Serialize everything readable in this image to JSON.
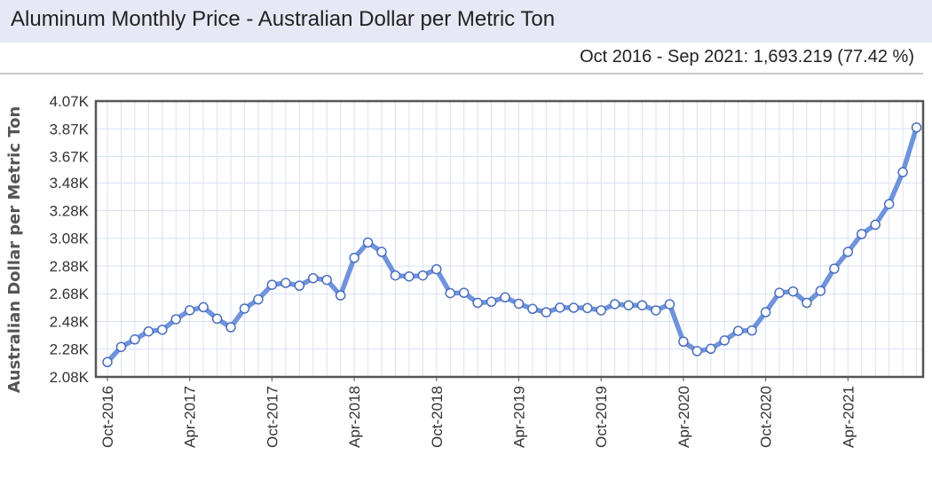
{
  "chart_data": {
    "type": "line",
    "title": "Aluminum Monthly Price - Australian Dollar per Metric Ton",
    "subtitle": "Oct 2016 - Sep 2021: 1,693.219 (77.42 %)",
    "xlabel": "",
    "ylabel": "Australian Dollar per Metric Ton",
    "ylim": [
      2080,
      4070
    ],
    "y_ticks": [
      2080,
      2280,
      2480,
      2680,
      2880,
      3080,
      3280,
      3480,
      3670,
      3870,
      4070
    ],
    "y_tick_labels": [
      "2.08K",
      "2.28K",
      "2.48K",
      "2.68K",
      "2.88K",
      "3.08K",
      "3.28K",
      "3.48K",
      "3.67K",
      "3.87K",
      "4.07K"
    ],
    "x_tick_labels": [
      "Oct-2016",
      "Apr-2017",
      "Oct-2017",
      "Apr-2018",
      "Oct-2018",
      "Apr-2019",
      "Oct-2019",
      "Apr-2020",
      "Oct-2020",
      "Apr-2021"
    ],
    "x_tick_indices": [
      0,
      6,
      12,
      18,
      24,
      30,
      36,
      42,
      48,
      54
    ],
    "grid": true,
    "legend": "none",
    "colors": {
      "line": "#6f93dc",
      "marker_fill": "#ffffff",
      "marker_stroke": "#4a6fbf",
      "grid": "#d9e1f5",
      "frame": "#555555"
    },
    "x": [
      "Oct-2016",
      "Nov-2016",
      "Dec-2016",
      "Jan-2017",
      "Feb-2017",
      "Mar-2017",
      "Apr-2017",
      "May-2017",
      "Jun-2017",
      "Jul-2017",
      "Aug-2017",
      "Sep-2017",
      "Oct-2017",
      "Nov-2017",
      "Dec-2017",
      "Jan-2018",
      "Feb-2018",
      "Mar-2018",
      "Apr-2018",
      "May-2018",
      "Jun-2018",
      "Jul-2018",
      "Aug-2018",
      "Sep-2018",
      "Oct-2018",
      "Nov-2018",
      "Dec-2018",
      "Jan-2019",
      "Feb-2019",
      "Mar-2019",
      "Apr-2019",
      "May-2019",
      "Jun-2019",
      "Jul-2019",
      "Aug-2019",
      "Sep-2019",
      "Oct-2019",
      "Nov-2019",
      "Dec-2019",
      "Jan-2020",
      "Feb-2020",
      "Mar-2020",
      "Apr-2020",
      "May-2020",
      "Jun-2020",
      "Jul-2020",
      "Aug-2020",
      "Sep-2020",
      "Oct-2020",
      "Nov-2020",
      "Dec-2020",
      "Jan-2021",
      "Feb-2021",
      "Mar-2021",
      "Apr-2021",
      "May-2021",
      "Jun-2021",
      "Jul-2021",
      "Aug-2021",
      "Sep-2021"
    ],
    "series": [
      {
        "values": [
          2187,
          2296,
          2350,
          2408,
          2420,
          2496,
          2561,
          2583,
          2500,
          2438,
          2573,
          2639,
          2745,
          2758,
          2738,
          2792,
          2780,
          2668,
          2939,
          3050,
          2982,
          2812,
          2805,
          2812,
          2857,
          2684,
          2687,
          2614,
          2622,
          2654,
          2608,
          2571,
          2546,
          2580,
          2579,
          2577,
          2560,
          2605,
          2597,
          2597,
          2560,
          2604,
          2334,
          2266,
          2283,
          2343,
          2412,
          2415,
          2547,
          2687,
          2697,
          2614,
          2701,
          2861,
          2982,
          3111,
          3178,
          3327,
          3557,
          3880
        ]
      }
    ]
  }
}
